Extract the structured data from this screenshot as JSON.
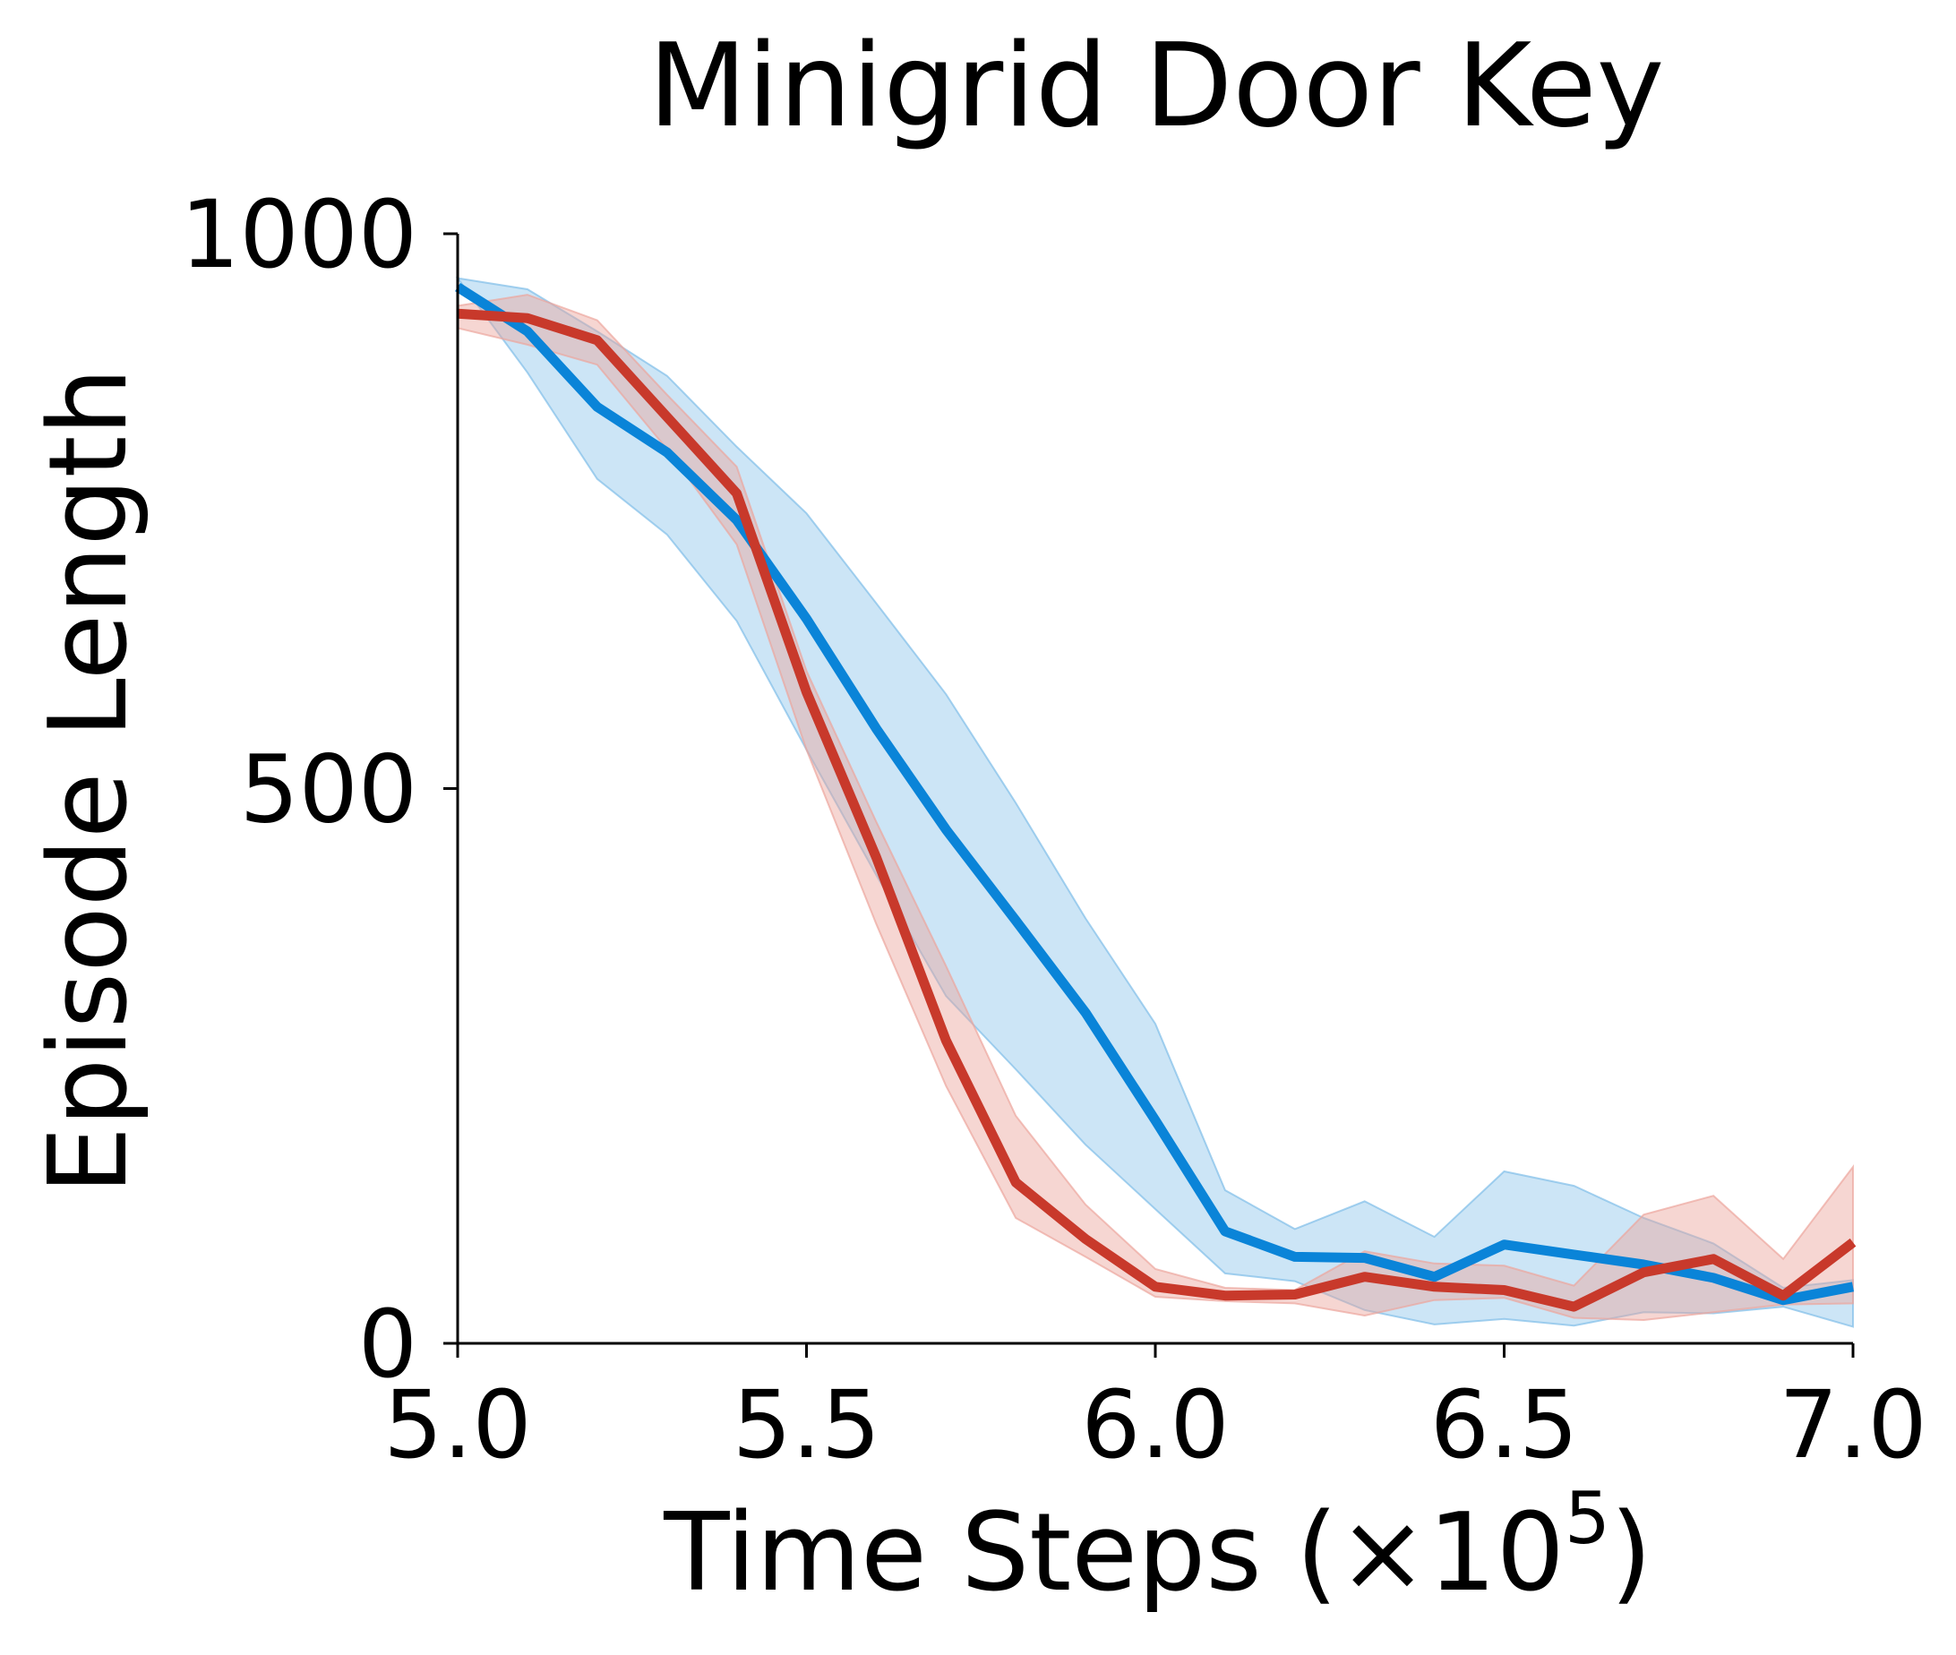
{
  "chart_data": {
    "type": "line",
    "title": "Minigrid Door Key",
    "xlabel": "Time Steps (×10",
    "xlabel_sup": "5",
    "xlabel_end": ")",
    "ylabel": "Episode Length",
    "xlim": [
      5.0,
      7.0
    ],
    "ylim": [
      0,
      1000
    ],
    "x_ticks": [
      5.0,
      5.5,
      6.0,
      6.5,
      7.0
    ],
    "x_tick_labels": [
      "5.0",
      "5.5",
      "6.0",
      "6.5",
      "7.0"
    ],
    "y_ticks": [
      0,
      500,
      1000
    ],
    "y_tick_labels": [
      "0",
      "500",
      "1000"
    ],
    "grid": false,
    "legend": "none",
    "x": [
      5.0,
      5.1,
      5.2,
      5.3,
      5.4,
      5.5,
      5.6,
      5.7,
      5.8,
      5.9,
      6.0,
      6.1,
      6.2,
      6.3,
      6.4,
      6.5,
      6.6,
      6.7,
      6.8,
      6.9,
      7.0
    ],
    "series": [
      {
        "color": "#0a84d8",
        "band_color": "#7fbde8",
        "values": [
          952,
          912,
          844,
          803,
          742,
          653,
          554,
          463,
          381,
          298,
          201,
          101,
          78,
          77,
          60,
          89,
          80,
          71,
          59,
          39,
          51
        ],
        "lower": [
          960,
          875,
          779,
          729,
          651,
          535,
          422,
          313,
          247,
          179,
          121,
          63,
          56,
          30,
          17,
          22,
          16,
          28,
          27,
          33,
          15
        ],
        "upper": [
          960,
          950,
          912,
          872,
          808,
          748,
          667,
          585,
          487,
          383,
          288,
          138,
          103,
          128,
          96,
          155,
          142,
          113,
          90,
          50,
          57
        ]
      },
      {
        "color": "#c8392b",
        "band_color": "#eca59c",
        "values": [
          928,
          924,
          904,
          835,
          766,
          587,
          438,
          273,
          145,
          94,
          51,
          43,
          44,
          60,
          51,
          48,
          33,
          64,
          76,
          43,
          91
        ]
      }
    ]
  }
}
